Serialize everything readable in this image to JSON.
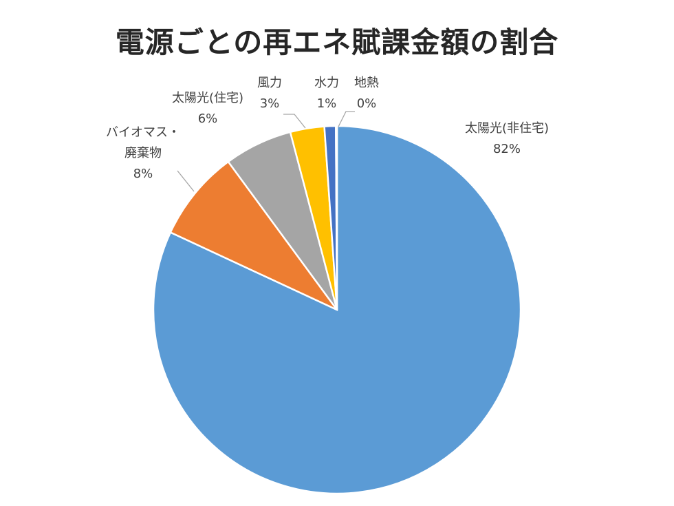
{
  "chart_data": {
    "type": "pie",
    "title": "電源ごとの再エネ賦課金額の割合",
    "slices": [
      {
        "name": "太陽光(非住宅)",
        "value": 82,
        "value_label": "82%",
        "color": "#5B9BD5"
      },
      {
        "name": "バイオマス・廃棄物",
        "value": 8,
        "value_label": "8%",
        "color": "#ED7D31"
      },
      {
        "name": "太陽光(住宅)",
        "value": 6,
        "value_label": "6%",
        "color": "#A5A5A5"
      },
      {
        "name": "風力",
        "value": 3,
        "value_label": "3%",
        "color": "#FFC000"
      },
      {
        "name": "水力",
        "value": 1,
        "value_label": "1%",
        "color": "#4472C4"
      },
      {
        "name": "地熱",
        "value": 0.1,
        "value_label": "0%",
        "color": "#70AD47"
      }
    ]
  }
}
